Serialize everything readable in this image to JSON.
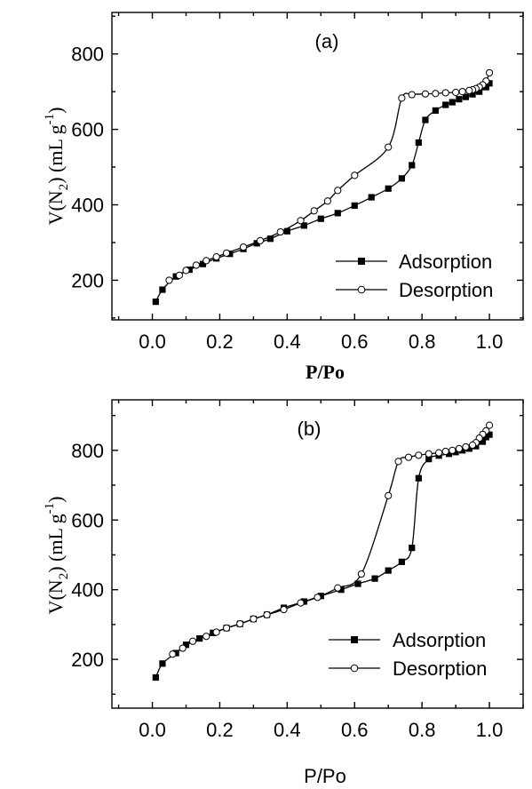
{
  "chart_data": [
    {
      "type": "line",
      "title": "(a)",
      "xlabel": "P/Po",
      "ylabel": {
        "pre": "V(N",
        "sub": "2",
        "mid": ") (mL g",
        "sup": "-1",
        "post": ")"
      },
      "xlim": [
        -0.12,
        1.1
      ],
      "ylim": [
        95,
        910
      ],
      "xticks": [
        "0.0",
        "0.2",
        "0.4",
        "0.6",
        "0.8",
        "1.0"
      ],
      "yticks": [
        "200",
        "400",
        "600",
        "800"
      ],
      "xtick_values": [
        0,
        0.2,
        0.4,
        0.6,
        0.8,
        1.0
      ],
      "ytick_values": [
        200,
        400,
        600,
        800
      ],
      "legend_position": "bottom-right",
      "series": [
        {
          "name": "Adsorption",
          "marker": "square-filled",
          "points": [
            [
              0.01,
              143
            ],
            [
              0.03,
              175
            ],
            [
              0.07,
              210
            ],
            [
              0.11,
              228
            ],
            [
              0.15,
              243
            ],
            [
              0.19,
              258
            ],
            [
              0.23,
              270
            ],
            [
              0.27,
              283
            ],
            [
              0.31,
              298
            ],
            [
              0.35,
              310
            ],
            [
              0.4,
              330
            ],
            [
              0.45,
              345
            ],
            [
              0.5,
              363
            ],
            [
              0.55,
              378
            ],
            [
              0.6,
              398
            ],
            [
              0.65,
              420
            ],
            [
              0.7,
              443
            ],
            [
              0.74,
              470
            ],
            [
              0.77,
              505
            ],
            [
              0.79,
              565
            ],
            [
              0.81,
              625
            ],
            [
              0.84,
              650
            ],
            [
              0.87,
              665
            ],
            [
              0.89,
              672
            ],
            [
              0.91,
              680
            ],
            [
              0.93,
              686
            ],
            [
              0.95,
              693
            ],
            [
              0.97,
              700
            ],
            [
              0.99,
              712
            ],
            [
              1.0,
              722
            ]
          ]
        },
        {
          "name": "Desorption",
          "marker": "circle-open",
          "points": [
            [
              1.0,
              750
            ],
            [
              0.99,
              728
            ],
            [
              0.98,
              718
            ],
            [
              0.97,
              712
            ],
            [
              0.96,
              708
            ],
            [
              0.95,
              705
            ],
            [
              0.94,
              703
            ],
            [
              0.92,
              700
            ],
            [
              0.9,
              698
            ],
            [
              0.87,
              697
            ],
            [
              0.84,
              695
            ],
            [
              0.81,
              694
            ],
            [
              0.77,
              692
            ],
            [
              0.74,
              683
            ],
            [
              0.7,
              553
            ],
            [
              0.6,
              478
            ],
            [
              0.55,
              438
            ],
            [
              0.52,
              410
            ],
            [
              0.48,
              384
            ],
            [
              0.44,
              358
            ],
            [
              0.38,
              328
            ],
            [
              0.32,
              305
            ],
            [
              0.27,
              288
            ],
            [
              0.22,
              272
            ],
            [
              0.19,
              262
            ],
            [
              0.16,
              252
            ],
            [
              0.13,
              240
            ],
            [
              0.1,
              226
            ],
            [
              0.08,
              213
            ],
            [
              0.05,
              200
            ]
          ]
        }
      ]
    },
    {
      "type": "line",
      "title": "(b)",
      "xlabel": "P/Po",
      "ylabel": {
        "pre": "V(N",
        "sub": "2",
        "mid": ") (mL g",
        "sup": "-1",
        "post": ")"
      },
      "xlim": [
        -0.12,
        1.1
      ],
      "ylim": [
        60,
        945
      ],
      "xticks": [
        "0.0",
        "0.2",
        "0.4",
        "0.6",
        "0.8",
        "1.0"
      ],
      "yticks": [
        "200",
        "400",
        "600",
        "800"
      ],
      "xtick_values": [
        0,
        0.2,
        0.4,
        0.6,
        0.8,
        1.0
      ],
      "ytick_values": [
        200,
        400,
        600,
        800
      ],
      "legend_position": "bottom-right",
      "series": [
        {
          "name": "Adsorption",
          "marker": "square-filled",
          "points": [
            [
              0.01,
              148
            ],
            [
              0.03,
              188
            ],
            [
              0.07,
              218
            ],
            [
              0.1,
              242
            ],
            [
              0.14,
              260
            ],
            [
              0.18,
              276
            ],
            [
              0.22,
              290
            ],
            [
              0.26,
              302
            ],
            [
              0.3,
              316
            ],
            [
              0.34,
              328
            ],
            [
              0.39,
              348
            ],
            [
              0.45,
              366
            ],
            [
              0.5,
              382
            ],
            [
              0.56,
              400
            ],
            [
              0.61,
              417
            ],
            [
              0.66,
              432
            ],
            [
              0.7,
              455
            ],
            [
              0.74,
              480
            ],
            [
              0.77,
              520
            ],
            [
              0.79,
              720
            ],
            [
              0.82,
              775
            ],
            [
              0.85,
              785
            ],
            [
              0.88,
              790
            ],
            [
              0.9,
              795
            ],
            [
              0.92,
              800
            ],
            [
              0.94,
              805
            ],
            [
              0.96,
              812
            ],
            [
              0.98,
              825
            ],
            [
              0.99,
              838
            ],
            [
              1.0,
              845
            ]
          ]
        },
        {
          "name": "Desorption",
          "marker": "circle-open",
          "points": [
            [
              1.0,
              872
            ],
            [
              0.99,
              856
            ],
            [
              0.98,
              846
            ],
            [
              0.97,
              835
            ],
            [
              0.96,
              822
            ],
            [
              0.95,
              815
            ],
            [
              0.93,
              810
            ],
            [
              0.91,
              805
            ],
            [
              0.89,
              800
            ],
            [
              0.87,
              797
            ],
            [
              0.85,
              793
            ],
            [
              0.82,
              790
            ],
            [
              0.79,
              786
            ],
            [
              0.76,
              780
            ],
            [
              0.73,
              768
            ],
            [
              0.7,
              670
            ],
            [
              0.62,
              445
            ],
            [
              0.55,
              405
            ],
            [
              0.49,
              378
            ],
            [
              0.44,
              362
            ],
            [
              0.39,
              343
            ],
            [
              0.34,
              328
            ],
            [
              0.3,
              316
            ],
            [
              0.26,
              302
            ],
            [
              0.22,
              290
            ],
            [
              0.19,
              278
            ],
            [
              0.16,
              266
            ],
            [
              0.12,
              252
            ],
            [
              0.09,
              232
            ],
            [
              0.06,
              215
            ]
          ]
        }
      ]
    }
  ]
}
